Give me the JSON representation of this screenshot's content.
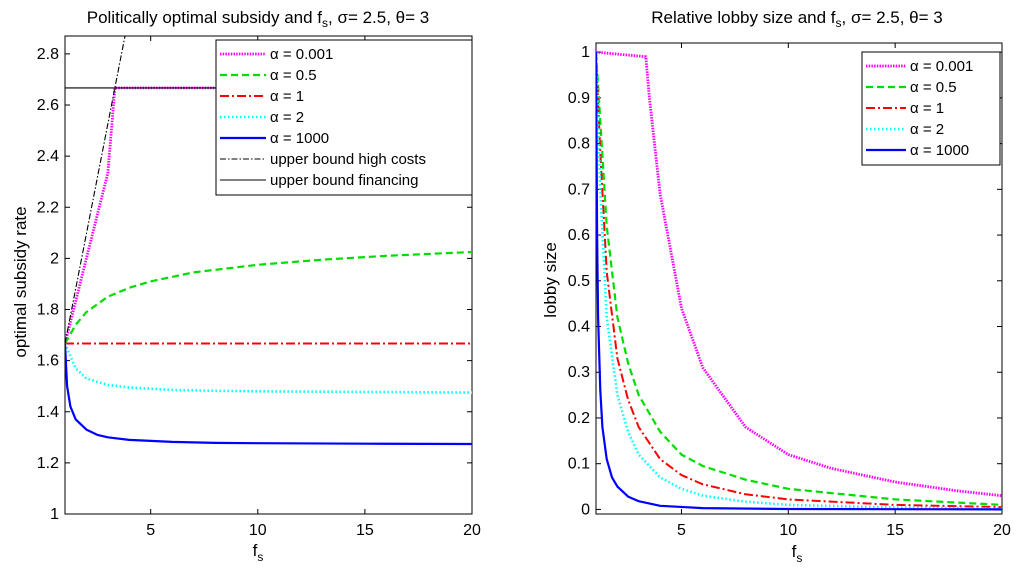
{
  "figure": {
    "left_title": "Politically optimal subsidy and f",
    "left_title_rest": ", σ= 2.5, θ= 3",
    "right_title": "Relative lobby size and f",
    "right_title_rest": ", σ= 2.5, θ= 3",
    "x_sub": "s",
    "left_ylabel": "optimal subsidy rate",
    "right_ylabel": "lobby size",
    "xlabel_main": "f",
    "xlabel_sub": "s"
  },
  "chart_data": [
    {
      "type": "line",
      "title": "Politically optimal subsidy and f_s, σ= 2.5, θ= 3",
      "xlabel": "f_s",
      "ylabel": "optimal subsidy rate",
      "xlim": [
        1,
        20
      ],
      "ylim": [
        1,
        2.87
      ],
      "xticks": [
        5,
        10,
        15,
        20
      ],
      "yticks": [
        1,
        1.2,
        1.4,
        1.6,
        1.8,
        2,
        2.2,
        2.4,
        2.6,
        2.8
      ],
      "ytick_labels": [
        "1",
        "1.2",
        "1.4",
        "1.6",
        "1.8",
        "2",
        "2.2",
        "2.4",
        "2.6",
        "2.8"
      ],
      "grid": false,
      "legend_position": "top-right",
      "series": [
        {
          "name": "α = 0.001",
          "color": "#ff00ff",
          "style": "dotted-points",
          "x": [
            1,
            1.5,
            2,
            2.5,
            3,
            3.33,
            5,
            10,
            15,
            20
          ],
          "y": [
            1.667,
            1.833,
            2.0,
            2.167,
            2.333,
            2.667,
            2.667,
            2.667,
            2.667,
            2.667
          ]
        },
        {
          "name": "α = 0.5",
          "color": "#00dd00",
          "style": "dashed",
          "x": [
            1,
            1.5,
            2,
            3,
            4,
            5,
            7,
            10,
            13,
            16,
            20
          ],
          "y": [
            1.667,
            1.74,
            1.79,
            1.85,
            1.885,
            1.91,
            1.945,
            1.975,
            1.995,
            2.01,
            2.025
          ]
        },
        {
          "name": "α = 1",
          "color": "#ff0000",
          "style": "dashdot",
          "x": [
            1,
            20
          ],
          "y": [
            1.667,
            1.667
          ]
        },
        {
          "name": "α = 2",
          "color": "#00ffff",
          "style": "dotted",
          "x": [
            1,
            1.5,
            2,
            3,
            4,
            6,
            8,
            10,
            14,
            20
          ],
          "y": [
            1.667,
            1.57,
            1.53,
            1.505,
            1.495,
            1.485,
            1.482,
            1.48,
            1.478,
            1.475
          ]
        },
        {
          "name": "α = 1000",
          "color": "#0000ff",
          "style": "solid",
          "x": [
            1,
            1.1,
            1.25,
            1.5,
            2,
            2.5,
            3,
            4,
            6,
            8,
            10,
            15,
            20
          ],
          "y": [
            1.667,
            1.5,
            1.42,
            1.37,
            1.33,
            1.31,
            1.3,
            1.29,
            1.282,
            1.278,
            1.277,
            1.275,
            1.274
          ]
        },
        {
          "name": "upper bound high costs",
          "color": "#000000",
          "style": "dashdot-thin",
          "x": [
            1,
            3.8
          ],
          "y": [
            1.667,
            2.87
          ]
        },
        {
          "name": "upper bound financing",
          "color": "#000000",
          "style": "solid-thin",
          "x": [
            1,
            20
          ],
          "y": [
            2.667,
            2.667
          ]
        }
      ]
    },
    {
      "type": "line",
      "title": "Relative lobby size and f_s, σ= 2.5, θ= 3",
      "xlabel": "f_s",
      "ylabel": "lobby size",
      "xlim": [
        1,
        20
      ],
      "ylim": [
        -0.01,
        1.02
      ],
      "xticks": [
        5,
        10,
        15,
        20
      ],
      "yticks": [
        0,
        0.1,
        0.2,
        0.3,
        0.4,
        0.5,
        0.6,
        0.7,
        0.8,
        0.9,
        1
      ],
      "ytick_labels": [
        "0",
        "0.1",
        "0.2",
        "0.3",
        "0.4",
        "0.5",
        "0.6",
        "0.7",
        "0.8",
        "0.9",
        "1"
      ],
      "grid": false,
      "legend_position": "top-right",
      "series": [
        {
          "name": "α = 0.001",
          "color": "#ff00ff",
          "style": "dotted-points",
          "x": [
            1,
            3.33,
            3.5,
            4,
            5,
            6,
            8,
            10,
            12,
            15,
            18,
            20
          ],
          "y": [
            1.0,
            0.99,
            0.9,
            0.69,
            0.44,
            0.31,
            0.18,
            0.12,
            0.09,
            0.06,
            0.04,
            0.03
          ]
        },
        {
          "name": "α = 0.5",
          "color": "#00dd00",
          "style": "dashed",
          "x": [
            1,
            1.2,
            1.5,
            2,
            2.5,
            3,
            4,
            5,
            6,
            8,
            10,
            15,
            20
          ],
          "y": [
            1.0,
            0.85,
            0.62,
            0.42,
            0.32,
            0.25,
            0.17,
            0.12,
            0.095,
            0.065,
            0.045,
            0.022,
            0.01
          ]
        },
        {
          "name": "α = 1",
          "color": "#ff0000",
          "style": "dashdot",
          "x": [
            1,
            1.2,
            1.5,
            2,
            2.5,
            3,
            4,
            5,
            6,
            8,
            10,
            15,
            20
          ],
          "y": [
            1.0,
            0.78,
            0.52,
            0.33,
            0.24,
            0.18,
            0.11,
            0.075,
            0.055,
            0.033,
            0.022,
            0.01,
            0.005
          ]
        },
        {
          "name": "α = 2",
          "color": "#00ffff",
          "style": "dotted",
          "x": [
            1,
            1.2,
            1.5,
            2,
            2.5,
            3,
            4,
            5,
            6,
            8,
            10,
            15,
            20
          ],
          "y": [
            1.0,
            0.7,
            0.42,
            0.25,
            0.17,
            0.12,
            0.07,
            0.045,
            0.03,
            0.017,
            0.01,
            0.004,
            0.002
          ]
        },
        {
          "name": "α = 1000",
          "color": "#0000ff",
          "style": "solid",
          "x": [
            1,
            1.05,
            1.1,
            1.2,
            1.3,
            1.5,
            1.75,
            2,
            2.5,
            3,
            4,
            6,
            10,
            20
          ],
          "y": [
            1.0,
            0.6,
            0.42,
            0.26,
            0.18,
            0.11,
            0.07,
            0.05,
            0.028,
            0.018,
            0.008,
            0.003,
            0.001,
            0.0
          ]
        }
      ]
    }
  ]
}
